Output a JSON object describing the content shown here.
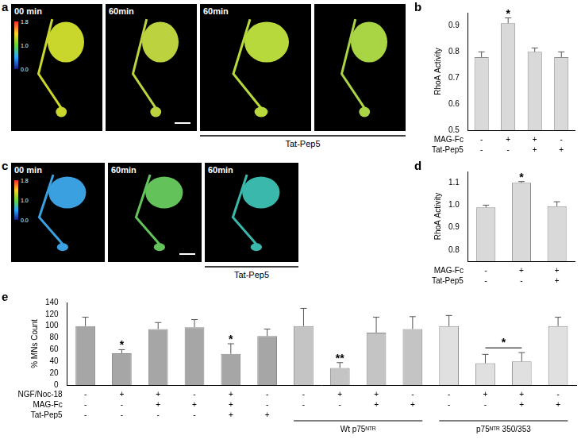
{
  "images": [
    {
      "panel": "a",
      "frames": [
        "00 min",
        "60min",
        "60min",
        null
      ],
      "bracket": {
        "label": "Tat-Pep5",
        "from": 2,
        "to": 3
      },
      "colorbar": [
        "1.8",
        "1.0",
        "0.0"
      ]
    },
    {
      "panel": "c",
      "frames": [
        "00 min",
        "60min",
        "60min"
      ],
      "bracket": {
        "label": "Tat-Pep5",
        "from": 2,
        "to": 2
      },
      "colorbar": [
        "1.8",
        "1.0",
        "0.0"
      ]
    }
  ],
  "chart_data": [
    {
      "panel": "b",
      "type": "bar",
      "y_label": "RhoA Activity",
      "categories": [
        null,
        null,
        null,
        null
      ],
      "values": [
        0.78,
        0.91,
        0.8,
        0.78
      ],
      "errors": [
        0.02,
        0.02,
        0.015,
        0.02
      ],
      "color": "#d9d9d9",
      "ylim": [
        0.5,
        0.95
      ],
      "yticks": [
        0.5,
        0.6,
        0.7,
        0.8,
        0.9
      ],
      "grid": false,
      "conditions": [
        {
          "label": "MAG-Fc",
          "values": [
            "-",
            "+",
            "+",
            "-"
          ]
        },
        {
          "label": "Tat-Pep5",
          "values": [
            "-",
            "-",
            "+",
            "+"
          ]
        }
      ],
      "annotations": [
        {
          "text": "*",
          "from": 1,
          "to": 1
        }
      ]
    },
    {
      "panel": "d",
      "type": "bar",
      "y_label": "RhoA Activity",
      "categories": [
        null,
        null,
        null
      ],
      "values": [
        0.99,
        1.1,
        0.995
      ],
      "errors": [
        0.01,
        0.005,
        0.02
      ],
      "color": "#d9d9d9",
      "ylim": [
        0.75,
        1.15
      ],
      "yticks": [
        0.8,
        0.9,
        {
          "value": 1,
          "label": "1.0"
        },
        1.1
      ],
      "grid": false,
      "conditions": [
        {
          "label": "MAG-Fc",
          "values": [
            "-",
            "+",
            "+"
          ]
        },
        {
          "label": "Tat-Pep5",
          "values": [
            "-",
            "-",
            "+"
          ]
        }
      ],
      "annotations": [
        {
          "text": "*",
          "from": 1,
          "to": 1
        }
      ]
    },
    {
      "panel": "e",
      "type": "bar",
      "y_label": "% MNs Count",
      "categories": [
        null,
        null,
        null,
        null,
        null,
        null,
        null,
        null,
        null,
        null,
        null,
        null,
        null,
        null
      ],
      "values": [
        100,
        54,
        95,
        98,
        53,
        83,
        100,
        29,
        89,
        95,
        100,
        37,
        40,
        100
      ],
      "errors": [
        15,
        6,
        11,
        13,
        17,
        12,
        30,
        9,
        26,
        21,
        18,
        15,
        15,
        15
      ],
      "colors": [
        "#a6a6a6",
        "#a6a6a6",
        "#a6a6a6",
        "#a6a6a6",
        "#a6a6a6",
        "#a6a6a6",
        "#c4c4c4",
        "#c4c4c4",
        "#c4c4c4",
        "#c4c4c4",
        "#e0e0e0",
        "#e0e0e0",
        "#e0e0e0",
        "#e0e0e0"
      ],
      "ylim": [
        0,
        140
      ],
      "yticks": [
        0,
        20,
        40,
        60,
        80,
        100,
        120,
        140
      ],
      "grid": false,
      "conditions": [
        {
          "label": "NGF/Noc-18",
          "values": [
            "-",
            "+",
            "+",
            "-",
            "+",
            "-",
            "-",
            "+",
            "+",
            "-",
            "-",
            "+",
            "+",
            "-"
          ]
        },
        {
          "label": "MAG-Fc",
          "values": [
            "-",
            "-",
            "+",
            "+",
            "+",
            "-",
            "-",
            "-",
            "+",
            "+",
            "-",
            "-",
            "+",
            "+"
          ]
        },
        {
          "label": "Tat-Pep5",
          "values": [
            "-",
            "-",
            "-",
            "-",
            "+",
            "+",
            null,
            null,
            null,
            null,
            null,
            null,
            null,
            null
          ]
        }
      ],
      "groups": [
        {
          "label": "Wt p75ᴺᵀᴿ",
          "from": 6,
          "to": 9
        },
        {
          "label": "p75ᴺᵀᴿ 350/353",
          "from": 10,
          "to": 13
        }
      ],
      "annotations": [
        {
          "text": "*",
          "from": 1,
          "to": 1
        },
        {
          "text": "*",
          "from": 4,
          "to": 4
        },
        {
          "text": "**",
          "from": 7,
          "to": 7
        },
        {
          "text": "*",
          "from": 11,
          "to": 12
        }
      ]
    }
  ]
}
